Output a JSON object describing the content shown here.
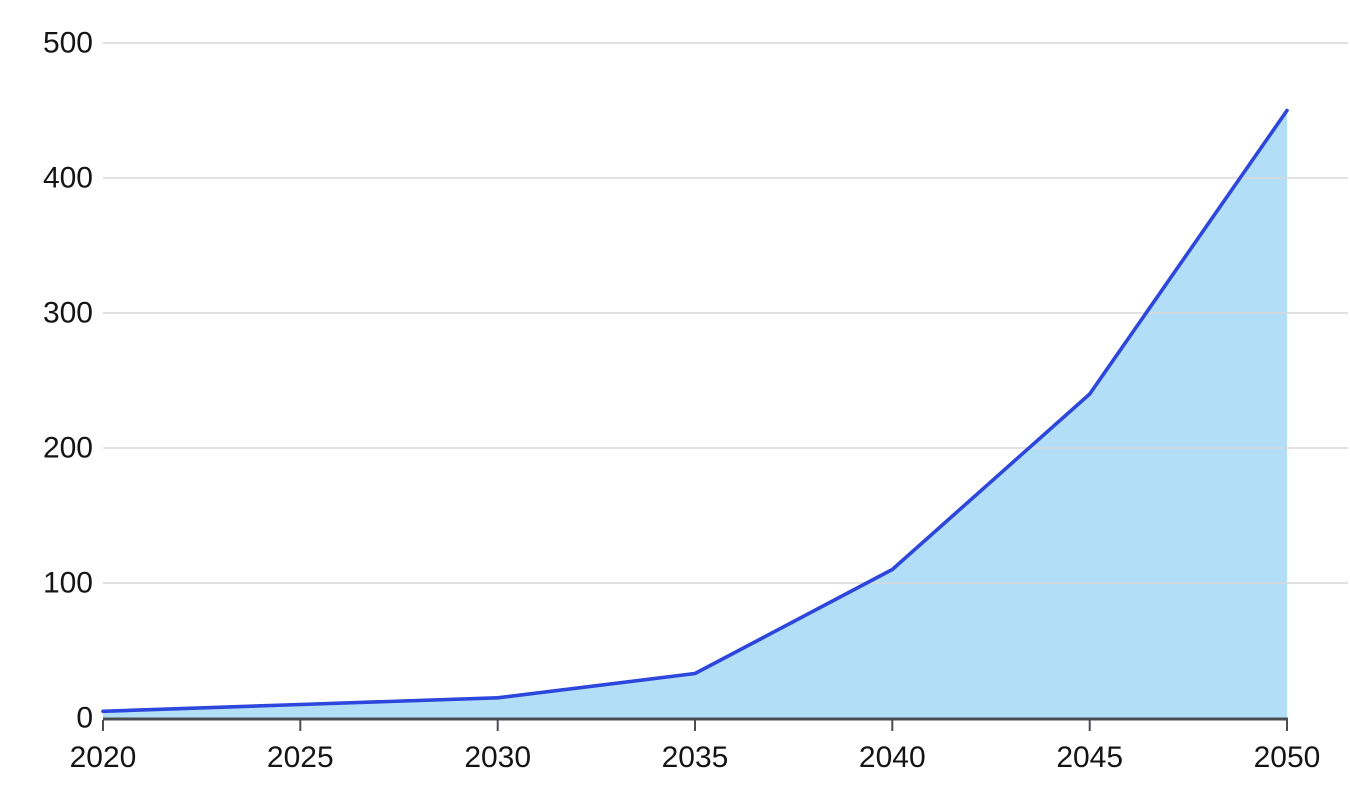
{
  "chart_data": {
    "type": "area",
    "title": "",
    "xlabel": "",
    "ylabel": "",
    "x": [
      2020,
      2025,
      2030,
      2035,
      2040,
      2045,
      2050
    ],
    "categories": [
      "2020",
      "2025",
      "2030",
      "2035",
      "2040",
      "2045",
      "2050"
    ],
    "series": [
      {
        "name": "value",
        "values": [
          5,
          10,
          15,
          33,
          110,
          240,
          450
        ]
      }
    ],
    "ylim": [
      0,
      500
    ],
    "yticks": [
      0,
      100,
      200,
      300,
      400,
      500
    ],
    "ytick_labels": [
      "0",
      "100",
      "200",
      "300",
      "400",
      "500"
    ],
    "grid": true,
    "legend": false,
    "colors": {
      "line": "#2d46dc",
      "fill": "#b3def8",
      "gridline": "#d7d7d7",
      "axis": "#4a4d52",
      "text": "#141414"
    }
  }
}
